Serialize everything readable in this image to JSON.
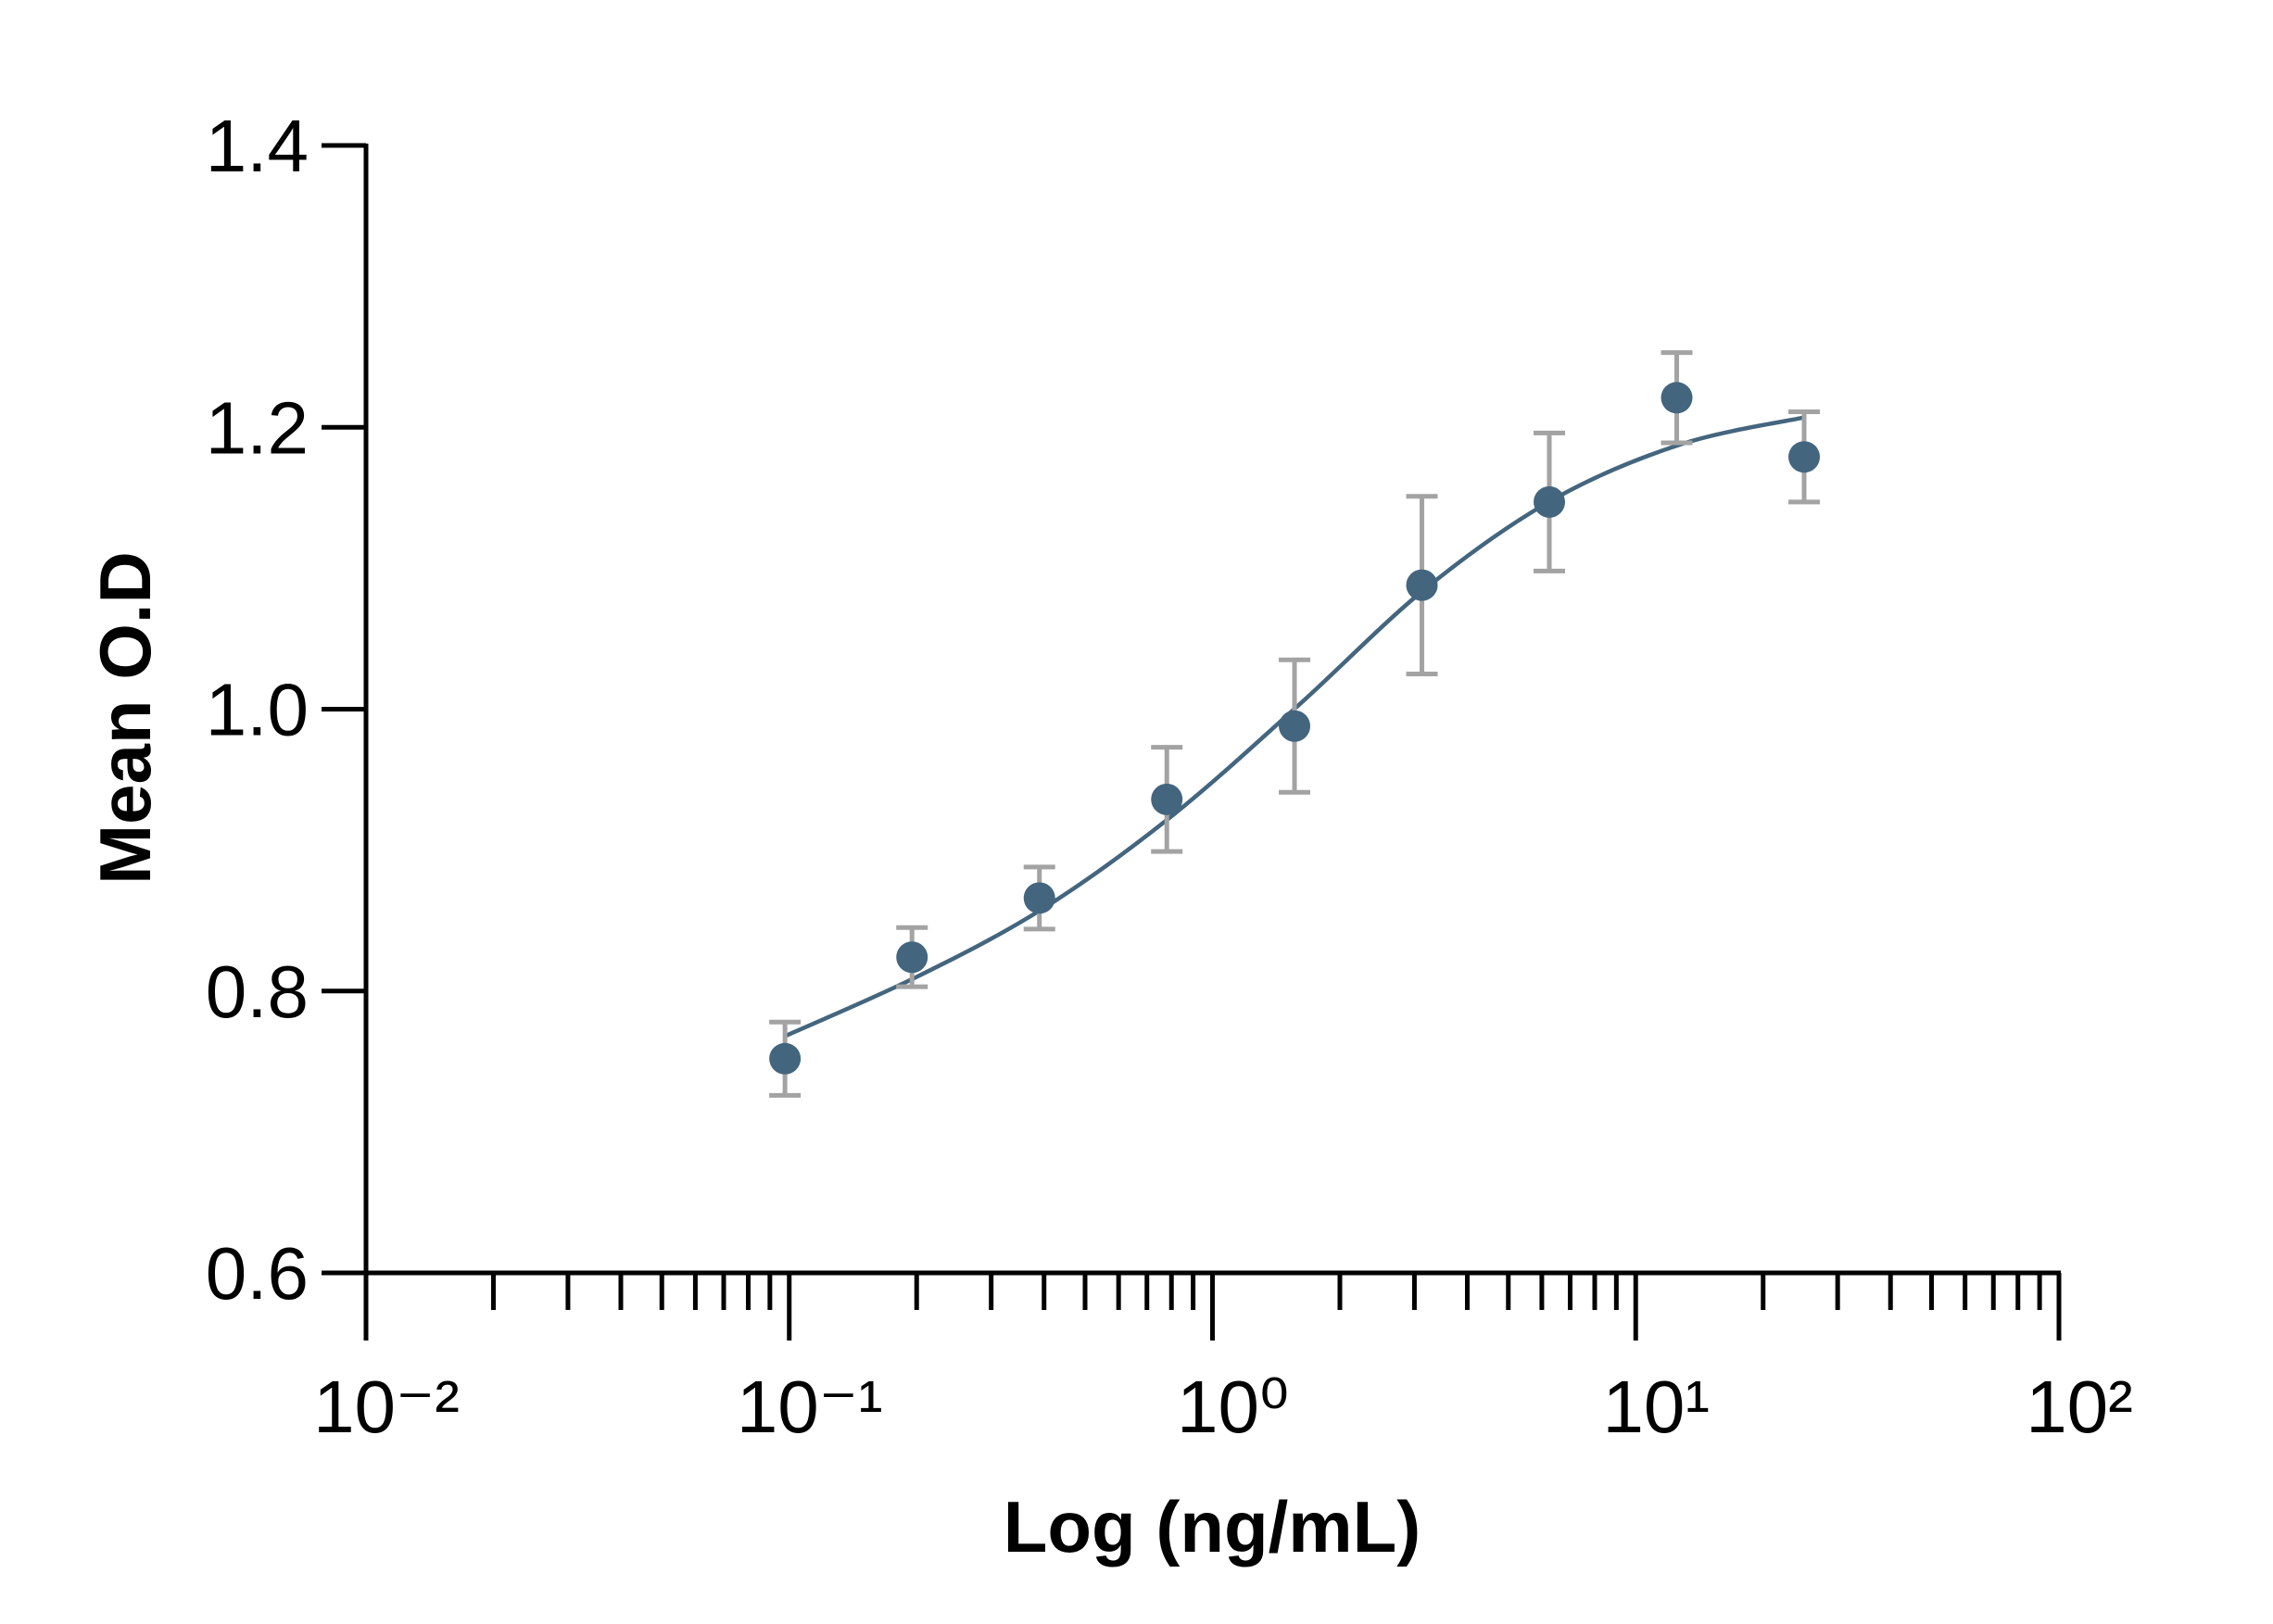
{
  "chart_data": {
    "type": "scatter",
    "x_label": "Log (ng/mL)",
    "y_label": "Mean O.D",
    "xscale": "log",
    "xlim": [
      0.01,
      100
    ],
    "ylim": [
      0.6,
      1.4
    ],
    "xticks": [
      {
        "value": 0.01,
        "label": "10⁻²"
      },
      {
        "value": 0.1,
        "label": "10⁻¹"
      },
      {
        "value": 1,
        "label": "10⁰"
      },
      {
        "value": 10,
        "label": "10¹"
      },
      {
        "value": 100,
        "label": "10²"
      }
    ],
    "xminorticks": [
      0.02,
      0.03,
      0.04,
      0.05,
      0.06,
      0.07,
      0.08,
      0.09,
      0.2,
      0.3,
      0.4,
      0.5,
      0.6,
      0.7,
      0.8,
      0.9,
      2,
      3,
      4,
      5,
      6,
      7,
      8,
      9,
      20,
      30,
      40,
      50,
      60,
      70,
      80,
      90
    ],
    "yticks": [
      0.6,
      0.8,
      {
        "value": 1,
        "label": "1.0"
      },
      1.2,
      1.4
    ],
    "series": [
      {
        "color": "#44657e",
        "error_color": "#a3a3a3",
        "x": [
          0.0977,
          0.195,
          0.39,
          0.78,
          1.5625,
          3.125,
          6.25,
          12.5,
          25
        ],
        "values": [
          0.752,
          0.824,
          0.866,
          0.936,
          0.988,
          1.088,
          1.147,
          1.221,
          1.179
        ],
        "errors": [
          0.026,
          0.021,
          0.022,
          0.037,
          0.047,
          0.063,
          0.049,
          0.032,
          0.032
        ]
      }
    ],
    "fit": {
      "color": "#44657e",
      "x": [
        0.0977,
        0.2,
        0.4,
        0.8,
        1.6,
        3.2,
        6.4,
        12.8,
        25
      ],
      "values": [
        0.768,
        0.81,
        0.859,
        0.924,
        1.003,
        1.086,
        1.149,
        1.188,
        1.207
      ]
    }
  }
}
